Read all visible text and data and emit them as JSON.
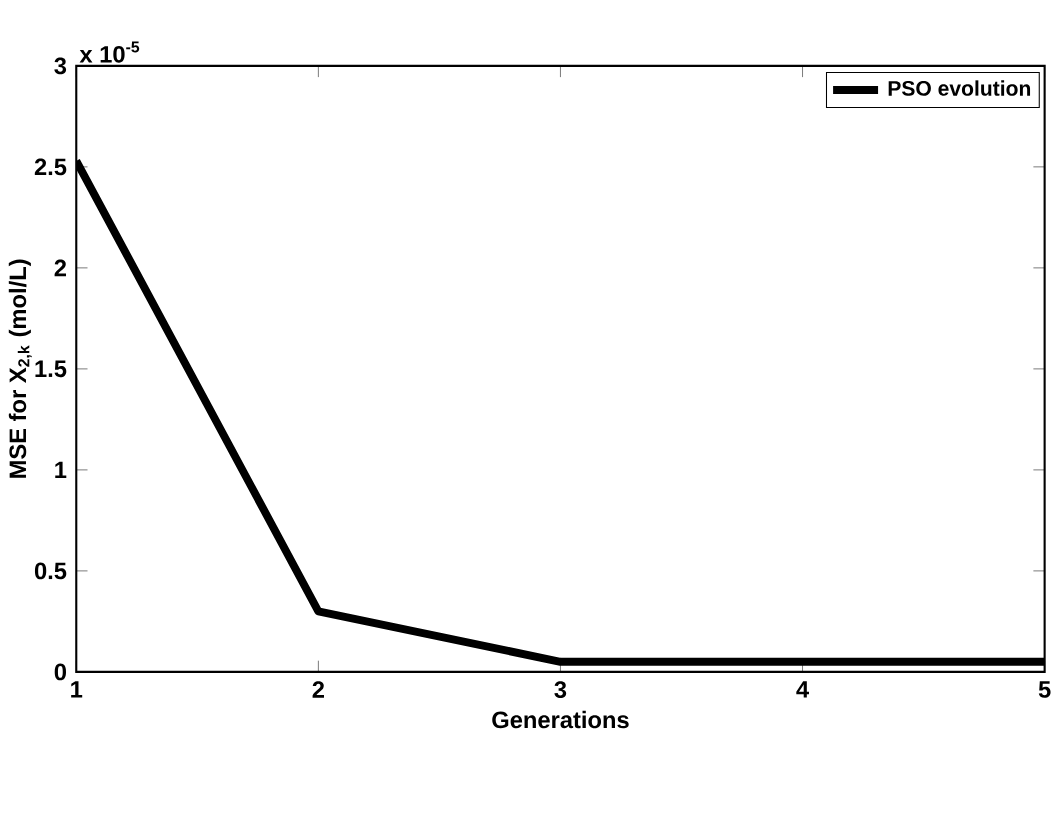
{
  "chart_data": {
    "type": "line",
    "xlabel": "Generations",
    "ylabel": "MSE for X$_{2,k}$ (mol/L)",
    "annotations": [
      "x 10$^{-5}$"
    ],
    "x": [
      1,
      2,
      3,
      4,
      5
    ],
    "series": [
      {
        "name": "PSO evolution",
        "color": "#000000",
        "values": [
          2.53,
          0.3,
          0.05,
          0.05,
          0.05
        ]
      }
    ],
    "xlim": [
      1,
      5
    ],
    "xticks": [
      1,
      2,
      3,
      4,
      5
    ],
    "ylim": [
      0,
      3
    ],
    "yticks": [
      0,
      0.5,
      1,
      1.5,
      2,
      2.5,
      3
    ],
    "grid": false,
    "legend": "top right",
    "marker": "none",
    "line_style": "solid"
  }
}
